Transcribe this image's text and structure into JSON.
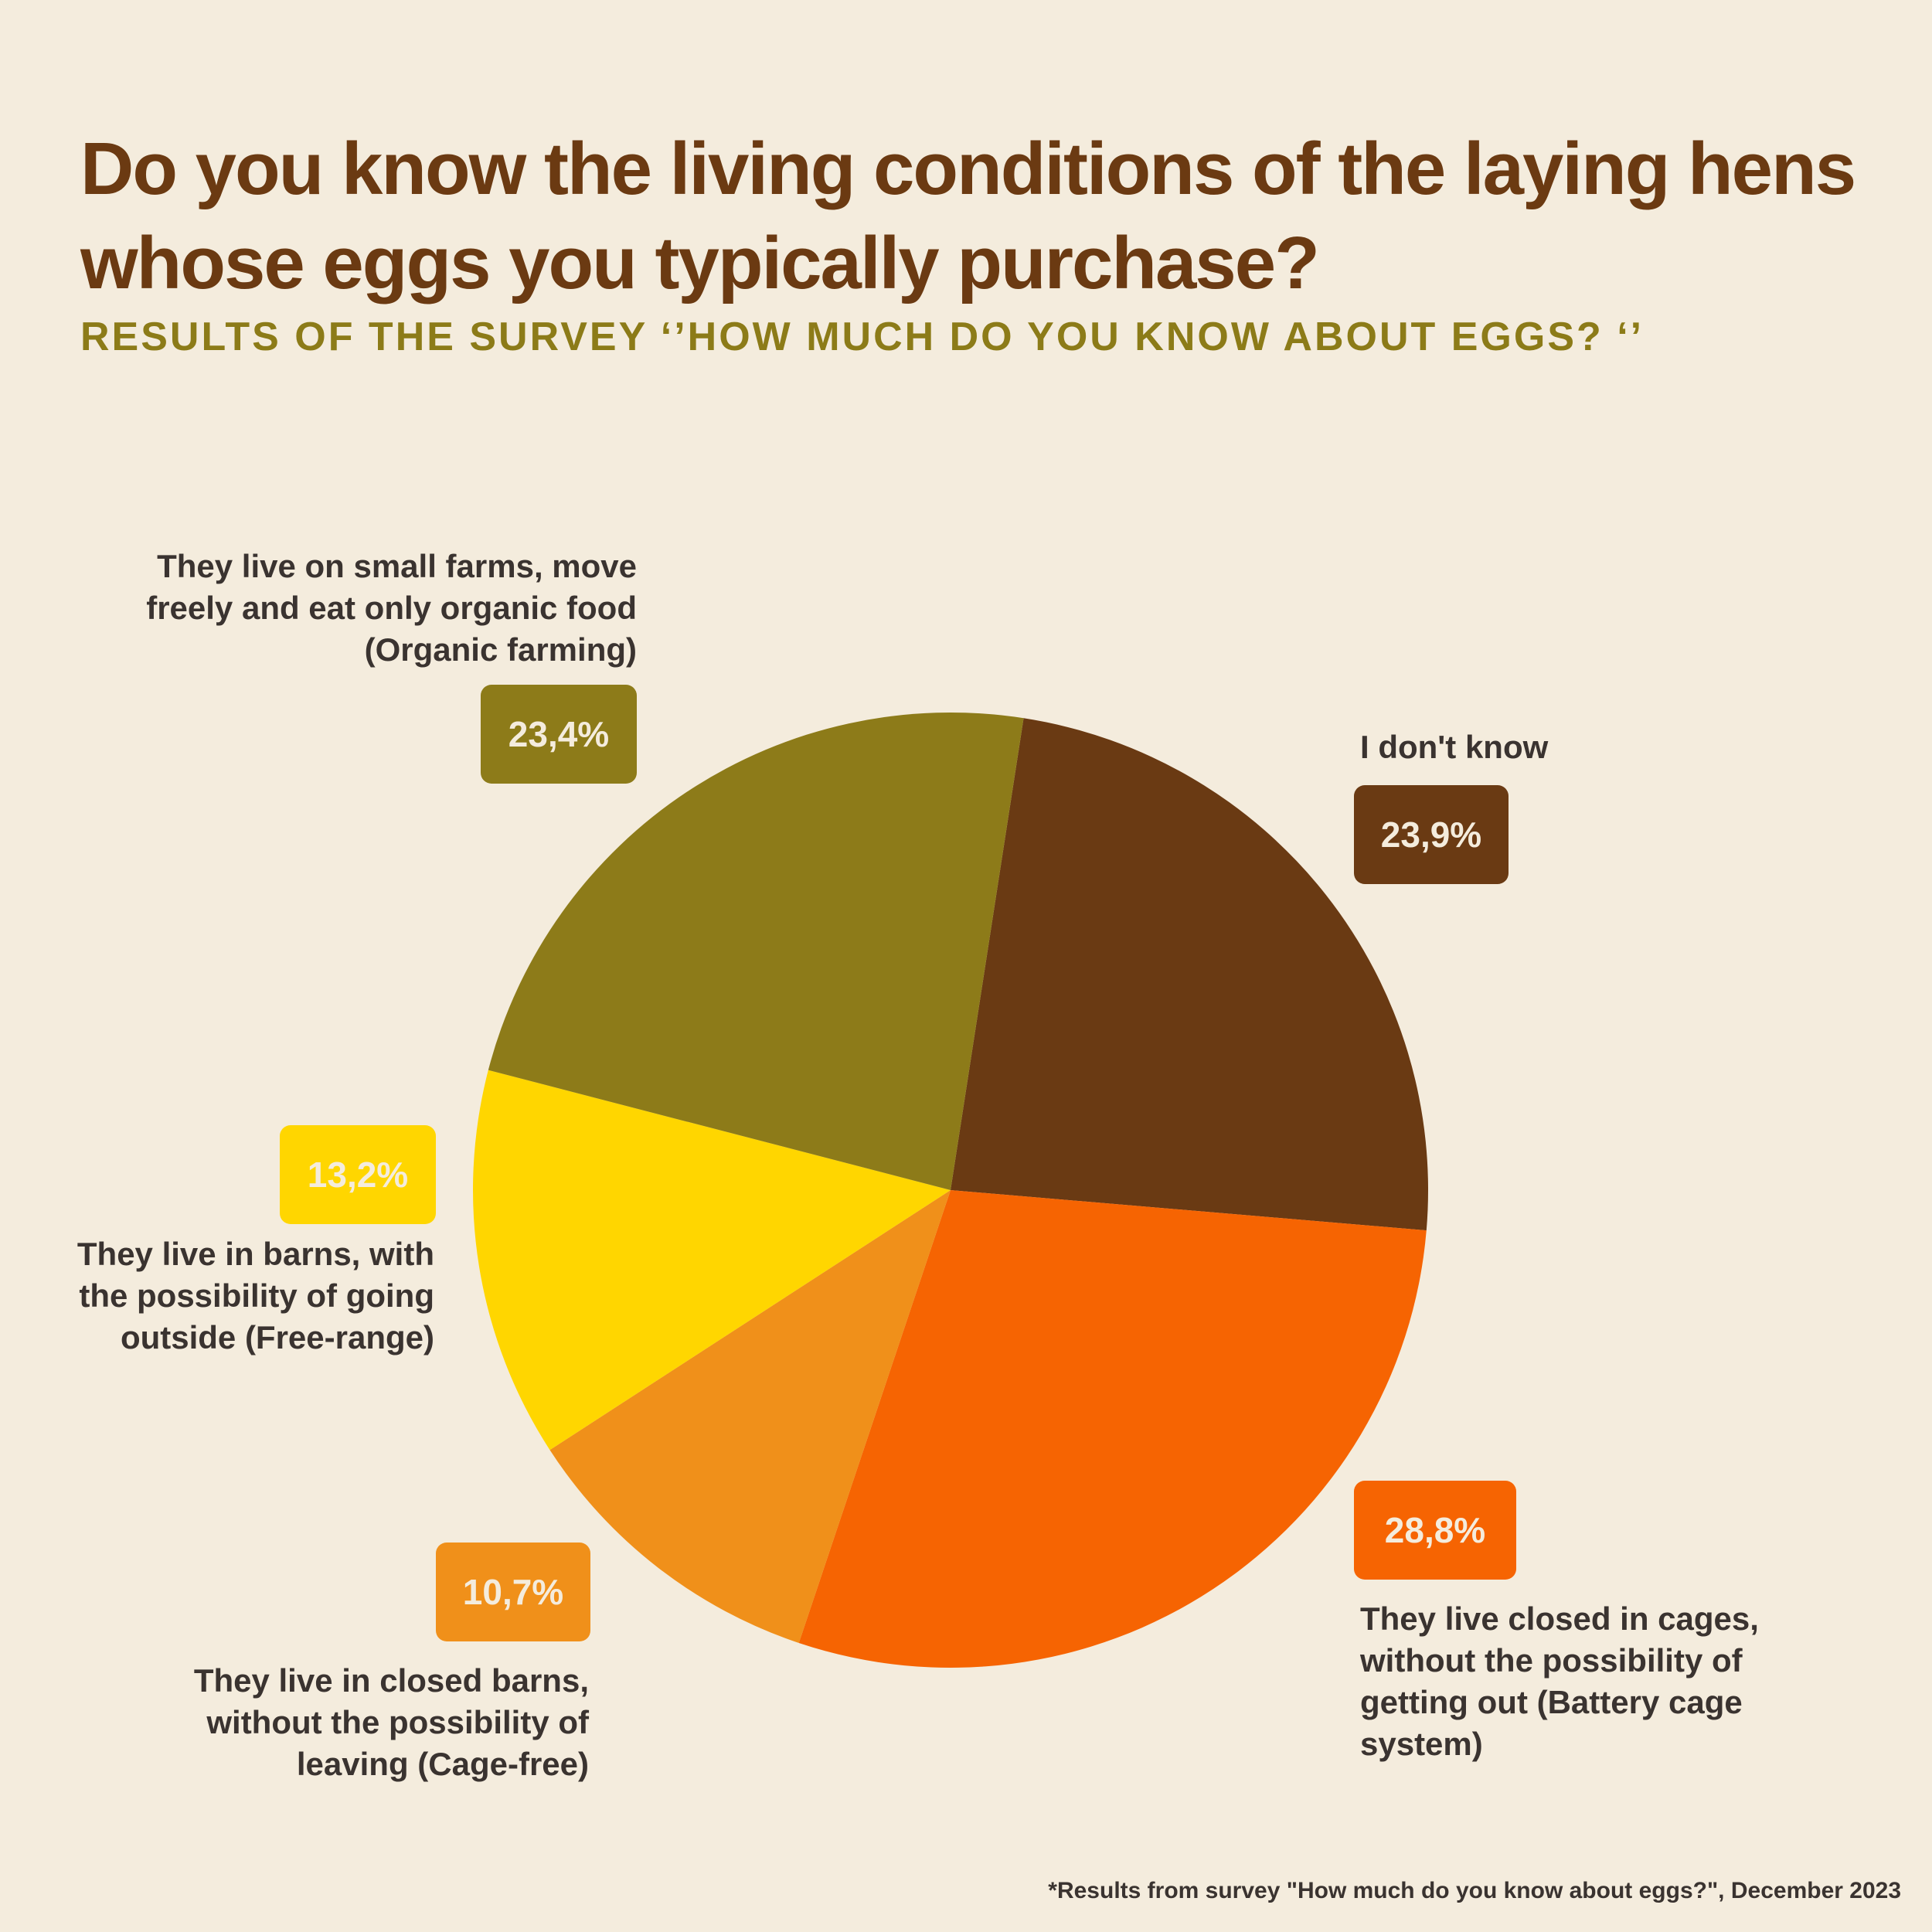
{
  "chart_data": {
    "type": "pie",
    "title": "Do you know the living conditions of the laying hens whose eggs you typically purchase?",
    "subtitle": "RESULTS OF THE SURVEY ‘’HOW MUCH DO YOU KNOW ABOUT EGGS? ‘’",
    "slices": [
      {
        "label": "I don't know",
        "value": 23.9,
        "value_label": "23,9%",
        "color": "#6A3A13"
      },
      {
        "label": "They live closed in cages,\nwithout the possibility of\ngetting out  (Battery cage\nsystem)",
        "value": 28.8,
        "value_label": "28,8%",
        "color": "#F66402"
      },
      {
        "label": "They live in closed barns,\nwithout the possibility of\nleaving (Cage-free)",
        "value": 10.7,
        "value_label": "10,7%",
        "color": "#F0901A"
      },
      {
        "label": "They live in barns, with\nthe possibility of going\noutside (Free-range)",
        "value": 13.2,
        "value_label": "13,2%",
        "color": "#FFD600"
      },
      {
        "label": "They live on small farms,  move\nfreely and eat only organic food\n(Organic farming)",
        "value": 23.4,
        "value_label": "23,4%",
        "color": "#8D7B19"
      }
    ],
    "footnote": "*Results from survey  \"How much do you know about eggs?\", December 2023"
  }
}
